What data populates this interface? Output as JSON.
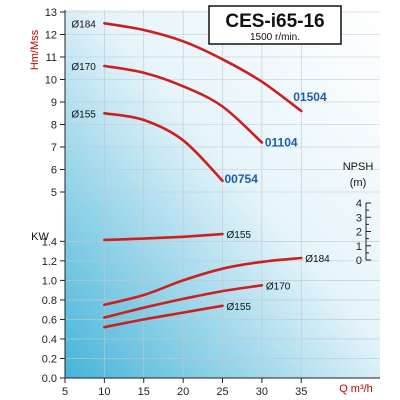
{
  "header": {
    "title": "CES-i65-16",
    "subtitle": "1500 r/min."
  },
  "colors": {
    "curve": "#cc1f1f",
    "model": "#1a5fa6",
    "bg_light": "#ffffff",
    "bg_blue": "#45b4d8"
  },
  "chart_data": {
    "type": "line",
    "x_ticks": [
      "5",
      "10",
      "15",
      "20",
      "25",
      "30",
      "35"
    ],
    "xlim": [
      5,
      37
    ],
    "xlabel": "Q m³/h",
    "head_axis": {
      "label": "Hm/Mss",
      "ticks": [
        "5",
        "6",
        "7",
        "8",
        "9",
        "10",
        "11",
        "12",
        "13"
      ],
      "ylim": [
        5,
        13
      ]
    },
    "power_axis": {
      "label": "KW",
      "ticks": [
        "0.0",
        "0.2",
        "0.4",
        "0.6",
        "0.8",
        "1.0",
        "1.2",
        "1.4"
      ],
      "ylim": [
        0.0,
        1.45
      ]
    },
    "npsh_axis": {
      "label": "NPSH",
      "unit": "(m)",
      "ticks": [
        "0",
        "1",
        "2",
        "3",
        "4"
      ]
    },
    "head_curves": [
      {
        "diameter": "Ø184",
        "model": "01504",
        "x": [
          10,
          15,
          20,
          25,
          30,
          35
        ],
        "y": [
          12.5,
          12.2,
          11.7,
          10.9,
          9.9,
          8.6
        ]
      },
      {
        "diameter": "Ø170",
        "model": "01104",
        "x": [
          10,
          15,
          20,
          25,
          30
        ],
        "y": [
          10.6,
          10.3,
          9.7,
          8.8,
          7.2
        ]
      },
      {
        "diameter": "Ø155",
        "model": "00754",
        "x": [
          10,
          15,
          20,
          25
        ],
        "y": [
          8.5,
          8.2,
          7.3,
          5.5
        ]
      }
    ],
    "power_curves": [
      {
        "diameter": "Ø184",
        "x": [
          10,
          15,
          20,
          25,
          30,
          35
        ],
        "y": [
          0.75,
          0.85,
          1.0,
          1.12,
          1.19,
          1.23
        ]
      },
      {
        "diameter": "Ø170",
        "x": [
          10,
          15,
          20,
          25,
          30
        ],
        "y": [
          0.62,
          0.72,
          0.81,
          0.89,
          0.95
        ]
      },
      {
        "diameter": "Ø155",
        "x": [
          10,
          15,
          20,
          25
        ],
        "y": [
          0.52,
          0.6,
          0.67,
          0.74
        ]
      }
    ],
    "npsh_curves": [
      {
        "diameter": "Ø155",
        "x": [
          10,
          15,
          20,
          25
        ],
        "y": [
          1.41,
          1.5,
          1.63,
          1.82
        ]
      }
    ]
  }
}
